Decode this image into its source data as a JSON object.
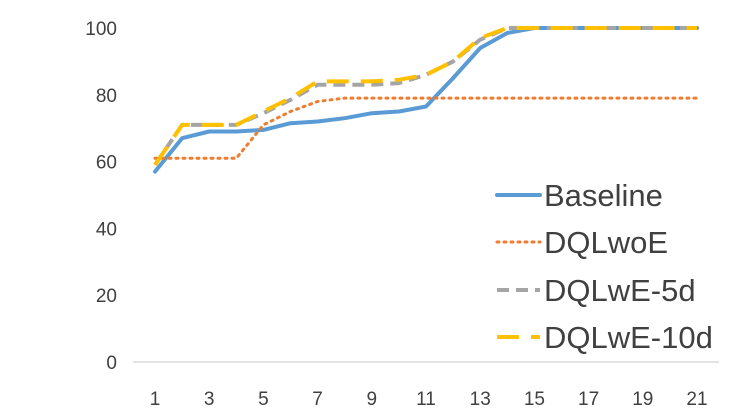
{
  "chart_data": {
    "type": "line",
    "title": "",
    "xlabel": "",
    "ylabel": "",
    "x": [
      1,
      2,
      3,
      4,
      5,
      6,
      7,
      8,
      9,
      10,
      11,
      12,
      13,
      14,
      15,
      16,
      17,
      18,
      19,
      20,
      21
    ],
    "x_ticks": [
      1,
      3,
      5,
      7,
      9,
      11,
      13,
      15,
      17,
      19,
      21
    ],
    "xlim": [
      1,
      21
    ],
    "ylim": [
      0,
      100
    ],
    "y_ticks": [
      0,
      20,
      40,
      60,
      80,
      100
    ],
    "grid": false,
    "legend_position": "bottom-right",
    "series": [
      {
        "name": "Baseline",
        "color": "#5b9bd5",
        "dash": "solid",
        "values": [
          57,
          67,
          69,
          69,
          69.5,
          71.5,
          72,
          73,
          74.5,
          75,
          76.5,
          85,
          94,
          98.5,
          100,
          100,
          100,
          100,
          100,
          100,
          100
        ]
      },
      {
        "name": "DQLwoE",
        "color": "#ed7d31",
        "dash": "dotted",
        "values": [
          61,
          61,
          61,
          61,
          71,
          75,
          78,
          79,
          79,
          79,
          79,
          79,
          79,
          79,
          79,
          79,
          79,
          79,
          79,
          79,
          79
        ]
      },
      {
        "name": "DQLwE-5d",
        "color": "#a5a5a5",
        "dash": "dashed",
        "values": [
          59,
          71,
          71,
          71,
          74.5,
          78.5,
          83,
          83,
          83,
          83.5,
          86,
          90,
          96.5,
          100,
          100,
          100,
          100,
          100,
          100,
          100,
          100
        ]
      },
      {
        "name": "DQLwE-10d",
        "color": "#ffc000",
        "dash": "longdash",
        "values": [
          59,
          71,
          71,
          71,
          75,
          79,
          84,
          84,
          84,
          84.5,
          86,
          90,
          97,
          100,
          100,
          100,
          100,
          100,
          100,
          100,
          100
        ]
      }
    ]
  }
}
